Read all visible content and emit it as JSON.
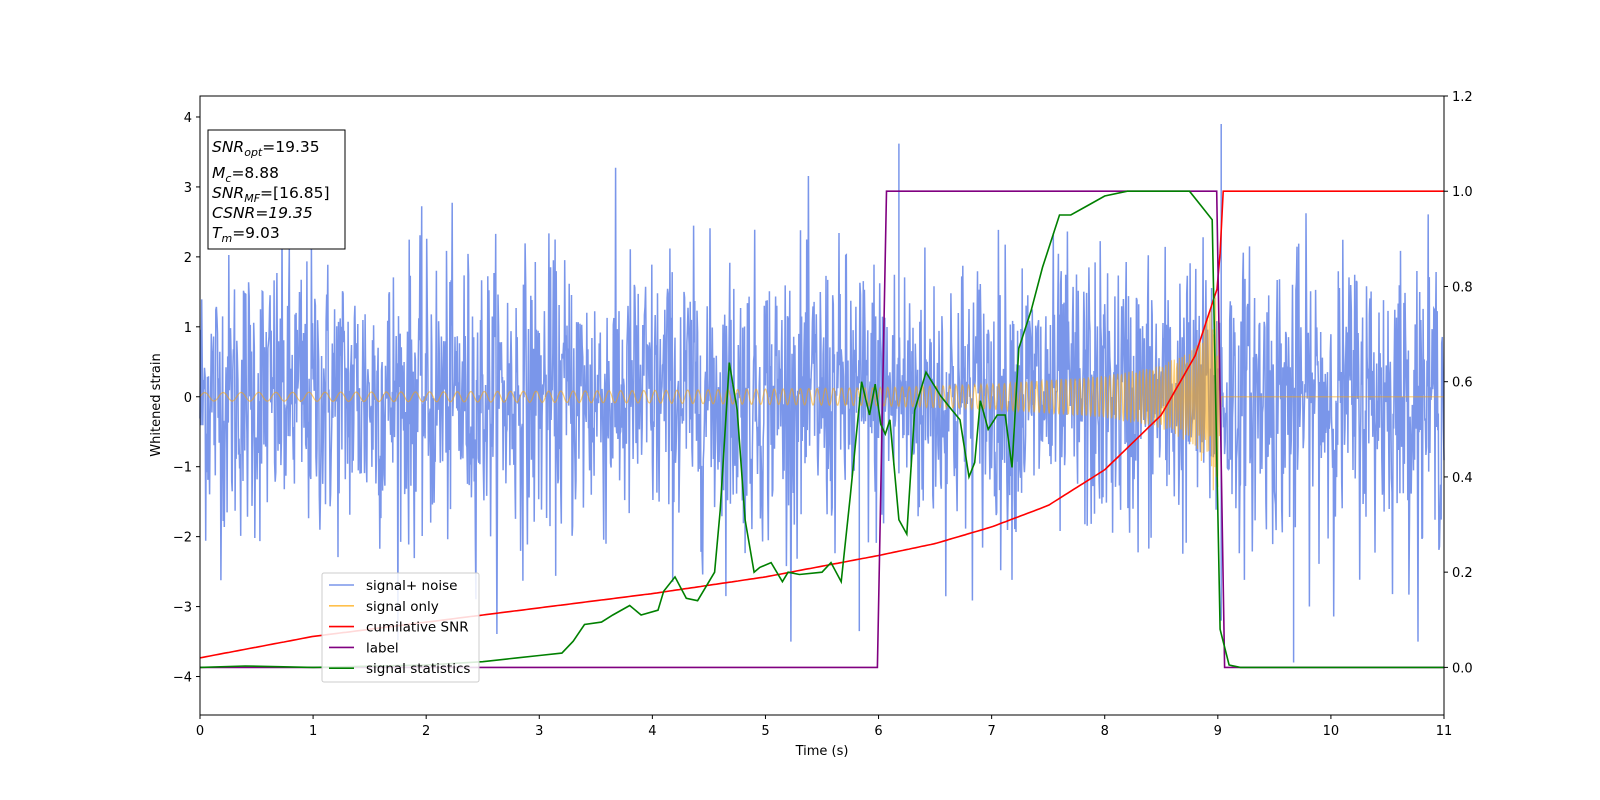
{
  "chart_data": {
    "type": "line",
    "xlabel": "Time (s)",
    "ylabel": "Whitened strain",
    "y2label": "",
    "xlim": [
      0,
      11
    ],
    "ylim": [
      -4.55,
      4.3
    ],
    "y2lim": [
      -0.1,
      1.2
    ],
    "x_ticks": [
      "0",
      "1",
      "2",
      "3",
      "4",
      "5",
      "6",
      "7",
      "8",
      "9",
      "10",
      "11"
    ],
    "y_ticks": [
      "−4",
      "−3",
      "−2",
      "−1",
      "0",
      "1",
      "2",
      "3",
      "4"
    ],
    "y2_ticks": [
      "0.0",
      "0.2",
      "0.4",
      "0.6",
      "0.8",
      "1.0",
      "1.2"
    ],
    "legend_position": "lower-left",
    "legend": [
      {
        "label": "signal+ noise",
        "color": "#4169e1"
      },
      {
        "label": "signal only",
        "color": "#ffa500"
      },
      {
        "label": "cumilative SNR",
        "color": "#ff0000"
      },
      {
        "label": "label",
        "color": "#800080"
      },
      {
        "label": "signal statistics",
        "color": "#008000"
      }
    ],
    "annotation": {
      "snr_opt": "=19.35",
      "mc": "=8.88",
      "snr_mf": "=[16.85]",
      "csnr": "CSNR=19.35",
      "tm": "=9.03"
    },
    "series": [
      {
        "name": "signal+ noise",
        "axis": "left",
        "description": "whitened strain noise, approx. range -3.5 to 3.9 over 0-11 s",
        "noise_std": 1.0,
        "sample_rate_hz": 200,
        "notable_peaks": [
          [
            9.03,
            3.9
          ],
          [
            9.03,
            -3.2
          ],
          [
            5.83,
            -3.35
          ],
          [
            9.67,
            -3.8
          ],
          [
            6.18,
            3.62
          ]
        ]
      },
      {
        "name": "signal only",
        "axis": "left",
        "description": "chirp with increasing amplitude, merging at t = 9.03 s",
        "x": [
          0,
          2,
          4,
          6,
          7,
          8,
          8.5,
          8.8,
          9.0,
          9.03,
          11
        ],
        "amplitude": [
          0.06,
          0.07,
          0.09,
          0.13,
          0.18,
          0.3,
          0.45,
          0.7,
          1.5,
          0.0,
          0.0
        ],
        "frequency_hz": [
          6,
          8,
          10,
          15,
          19,
          27,
          36,
          50,
          80,
          0,
          0
        ]
      },
      {
        "name": "cumilative SNR",
        "axis": "right",
        "x": [
          0,
          1,
          2,
          3,
          4,
          5,
          6,
          6.5,
          7,
          7.5,
          8,
          8.5,
          8.8,
          9.0,
          9.02,
          9.03,
          11
        ],
        "y": [
          0.02,
          0.065,
          0.095,
          0.125,
          0.155,
          0.19,
          0.235,
          0.26,
          0.295,
          0.34,
          0.415,
          0.53,
          0.655,
          0.8,
          0.87,
          1.0,
          1.0
        ]
      },
      {
        "name": "label",
        "axis": "right",
        "x": [
          0,
          5.99,
          6.07,
          8.99,
          9.06,
          11
        ],
        "y": [
          0,
          0,
          1,
          1,
          0,
          0
        ]
      },
      {
        "name": "signal statistics",
        "axis": "right",
        "x": [
          0,
          0.4,
          1.0,
          2.0,
          2.5,
          2.8,
          3.0,
          3.2,
          3.3,
          3.4,
          3.55,
          3.65,
          3.8,
          3.9,
          4.05,
          4.1,
          4.2,
          4.3,
          4.4,
          4.55,
          4.6,
          4.68,
          4.75,
          4.82,
          4.9,
          4.95,
          5.05,
          5.15,
          5.2,
          5.3,
          5.5,
          5.58,
          5.67,
          5.75,
          5.85,
          5.92,
          5.97,
          6.02,
          6.06,
          6.1,
          6.18,
          6.25,
          6.32,
          6.42,
          6.55,
          6.65,
          6.72,
          6.8,
          6.85,
          6.9,
          6.97,
          7.05,
          7.12,
          7.18,
          7.24,
          7.35,
          7.45,
          7.6,
          7.7,
          7.85,
          8.0,
          8.2,
          8.5,
          8.75,
          8.85,
          8.95,
          9.02,
          9.1,
          9.2,
          11
        ],
        "y": [
          0.0,
          0.003,
          0.0,
          0.005,
          0.012,
          0.02,
          0.025,
          0.03,
          0.055,
          0.09,
          0.095,
          0.11,
          0.13,
          0.11,
          0.12,
          0.16,
          0.19,
          0.145,
          0.14,
          0.2,
          0.33,
          0.64,
          0.54,
          0.31,
          0.2,
          0.21,
          0.22,
          0.18,
          0.2,
          0.195,
          0.2,
          0.22,
          0.18,
          0.36,
          0.6,
          0.53,
          0.595,
          0.51,
          0.49,
          0.52,
          0.31,
          0.28,
          0.54,
          0.62,
          0.57,
          0.54,
          0.52,
          0.4,
          0.43,
          0.56,
          0.5,
          0.53,
          0.53,
          0.42,
          0.67,
          0.75,
          0.84,
          0.95,
          0.95,
          0.97,
          0.99,
          1.0,
          1.0,
          1.0,
          0.97,
          0.94,
          0.08,
          0.005,
          0.0,
          0.0
        ]
      }
    ]
  }
}
